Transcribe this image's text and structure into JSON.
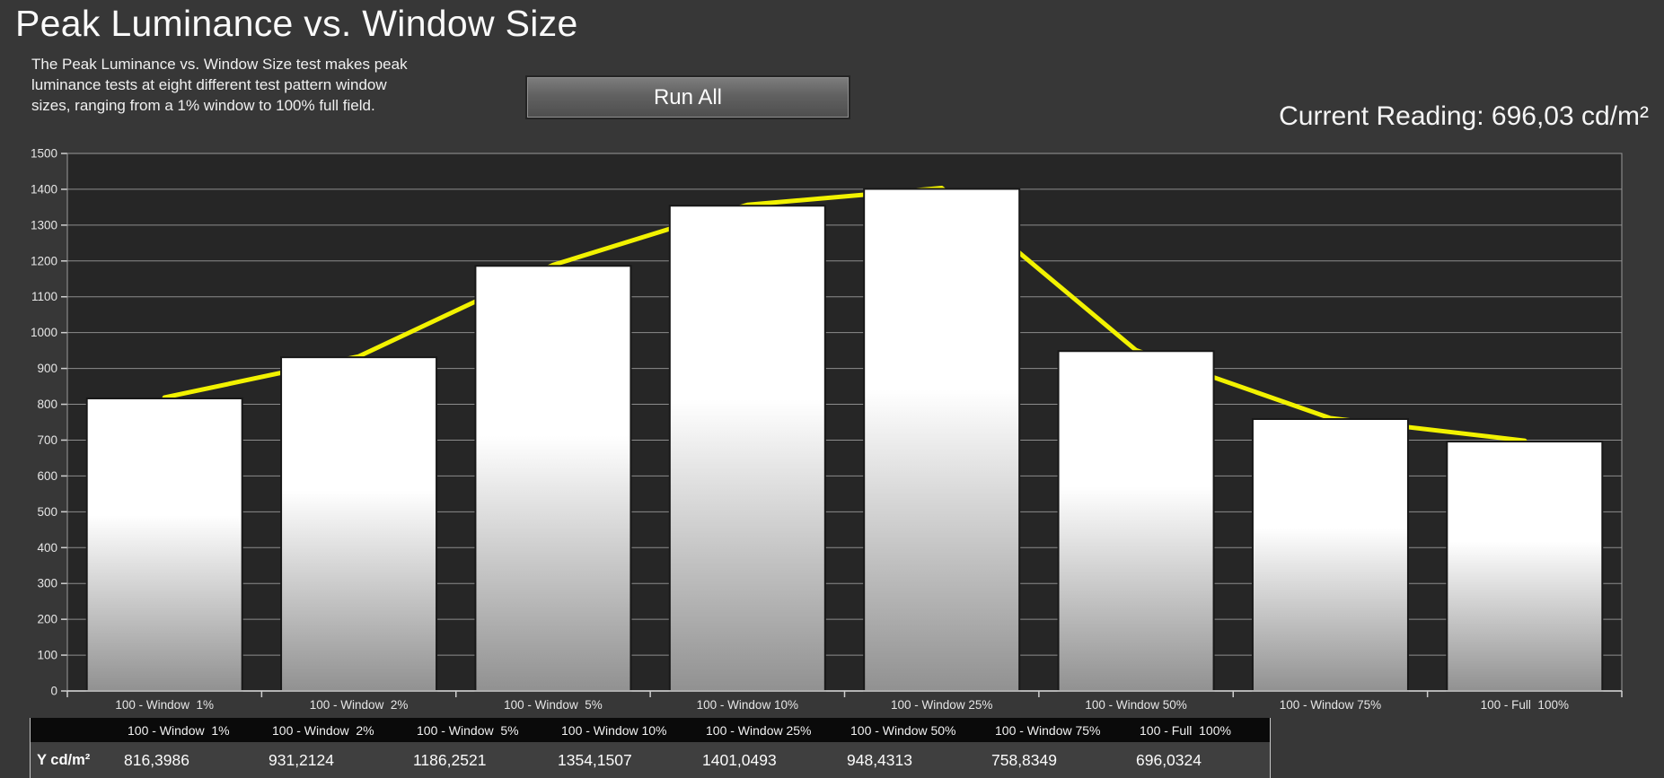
{
  "header": {
    "title": "Peak Luminance vs. Window Size",
    "description": "The Peak Luminance vs. Window Size test makes peak\nluminance tests at eight different test pattern window\nsizes, ranging from a 1% window to 100% full field.",
    "run_all_label": "Run All",
    "current_reading": "Current Reading: 696,03 cd/m²"
  },
  "chart_data": {
    "type": "bar",
    "categories": [
      "100 - Window  1%",
      "100 - Window  2%",
      "100 - Window  5%",
      "100 - Window 10%",
      "100 - Window 25%",
      "100 - Window 50%",
      "100 - Window 75%",
      "100 - Full  100%"
    ],
    "series": [
      {
        "name": "Y cd/m²",
        "values": [
          816.3986,
          931.2124,
          1186.2521,
          1354.1507,
          1401.0493,
          948.4313,
          758.8349,
          696.0324
        ]
      }
    ],
    "title": "",
    "xlabel": "",
    "ylabel": "",
    "ylim": [
      0,
      1500
    ],
    "ytick_step": 100,
    "grid": true,
    "legend": "none",
    "line_overlay_on_bar_tops": true
  },
  "table": {
    "row_label": "Y cd/m²",
    "columns": [
      "100 - Window  1%",
      "100 - Window  2%",
      "100 - Window  5%",
      "100 - Window 10%",
      "100 - Window 25%",
      "100 - Window 50%",
      "100 - Window 75%",
      "100 - Full  100%"
    ],
    "values": [
      "816,3986",
      "931,2124",
      "1186,2521",
      "1354,1507",
      "1401,0493",
      "948,4313",
      "758,8349",
      "696,0324"
    ]
  },
  "colors": {
    "background": "#373737",
    "plot_background": "#262626",
    "gridline": "#8c8c8c",
    "plot_border": "#9a9a9a",
    "baseline": "#e0e0e0",
    "tick": "#d0d0d0",
    "axis_text": "#e6e6e6",
    "bar_top": "#ffffff",
    "bar_mid": "#ffffff",
    "bar_bottom": "#919191",
    "bar_border": "#181818",
    "line_accent": "#f2f200",
    "table_header_bg": "#0a0a0a",
    "table_value_bg": "#3f3f3f"
  }
}
